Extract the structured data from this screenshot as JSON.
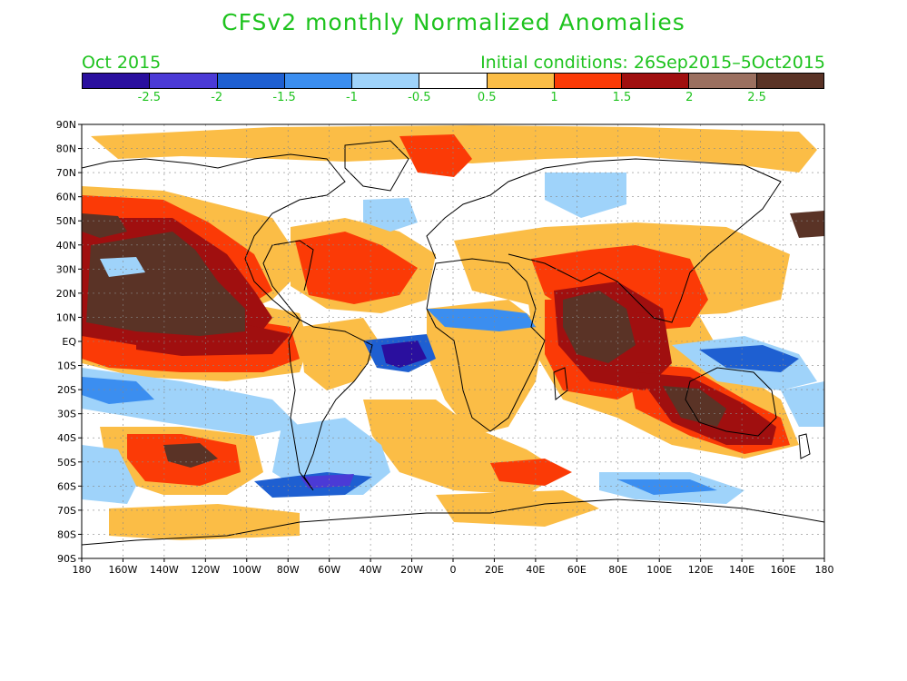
{
  "title": "CFSv2 monthly Normalized Anomalies",
  "subtitle_left": "Oct 2015",
  "subtitle_right": "Initial conditions: 26Sep2015–5Oct2015",
  "colorbar": {
    "colors": [
      "#2a0f9e",
      "#4b3ad6",
      "#1e5fd1",
      "#3b8ef0",
      "#9fd3fa",
      "#ffffff",
      "#fbbd46",
      "#fb3a06",
      "#a00f0f",
      "#9b7060",
      "#5a3326"
    ],
    "labels": [
      "-2.5",
      "-2",
      "-1.5",
      "-1",
      "-0.5",
      "0.5",
      "1",
      "1.5",
      "2",
      "2.5"
    ]
  },
  "axes": {
    "lat_labels": [
      "90N",
      "80N",
      "70N",
      "60N",
      "50N",
      "40N",
      "30N",
      "20N",
      "10N",
      "EQ",
      "10S",
      "20S",
      "30S",
      "40S",
      "50S",
      "60S",
      "70S",
      "80S",
      "90S"
    ],
    "lon_labels": [
      "180",
      "160W",
      "140W",
      "120W",
      "100W",
      "80W",
      "60W",
      "40W",
      "20W",
      "0",
      "20E",
      "40E",
      "60E",
      "80E",
      "100E",
      "120E",
      "140E",
      "160E",
      "180"
    ]
  }
}
